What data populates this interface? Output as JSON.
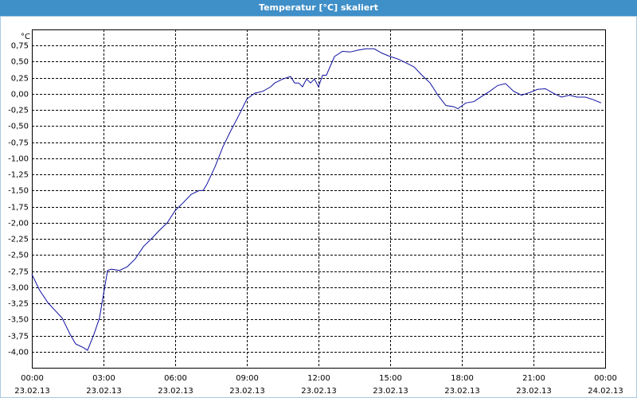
{
  "window_title": "Temperatur [°C] skaliert",
  "chart_data": {
    "type": "line",
    "ylabel": "°C",
    "x": [
      0,
      0.33,
      0.67,
      1.27,
      1.6,
      1.83,
      2.17,
      2.33,
      2.6,
      2.83,
      3.0,
      3.17,
      3.33,
      3.67,
      4.0,
      4.33,
      4.67,
      5.0,
      5.33,
      5.67,
      6.0,
      6.33,
      6.67,
      7.0,
      7.17,
      7.33,
      7.67,
      8.0,
      8.33,
      8.67,
      9.0,
      9.33,
      9.67,
      10.0,
      10.17,
      10.5,
      10.83,
      11.0,
      11.17,
      11.33,
      11.5,
      11.67,
      11.83,
      12.0,
      12.17,
      12.33,
      12.67,
      13.0,
      13.33,
      13.67,
      14.0,
      14.33,
      14.67,
      15.0,
      15.33,
      15.67,
      16.0,
      16.33,
      16.67,
      17.0,
      17.33,
      17.67,
      17.83,
      18.17,
      18.5,
      18.83,
      19.17,
      19.5,
      19.83,
      20.17,
      20.5,
      20.83,
      21.17,
      21.5,
      21.83,
      22.17,
      22.5,
      22.83,
      23.17,
      23.5,
      23.83
    ],
    "series": [
      {
        "color": "#1010a0",
        "values": [
          -2.8,
          -3.05,
          -3.24,
          -3.48,
          -3.73,
          -3.88,
          -3.94,
          -3.98,
          -3.73,
          -3.48,
          -3.11,
          -2.74,
          -2.72,
          -2.74,
          -2.68,
          -2.56,
          -2.37,
          -2.25,
          -2.12,
          -2.0,
          -1.81,
          -1.69,
          -1.56,
          -1.5,
          -1.5,
          -1.4,
          -1.13,
          -0.82,
          -0.57,
          -0.33,
          -0.08,
          0.01,
          0.04,
          0.11,
          0.17,
          0.23,
          0.27,
          0.17,
          0.17,
          0.11,
          0.23,
          0.17,
          0.23,
          0.11,
          0.29,
          0.29,
          0.58,
          0.66,
          0.65,
          0.68,
          0.7,
          0.7,
          0.63,
          0.58,
          0.54,
          0.48,
          0.42,
          0.29,
          0.17,
          -0.02,
          -0.18,
          -0.2,
          -0.23,
          -0.14,
          -0.12,
          -0.04,
          0.04,
          0.13,
          0.16,
          0.04,
          -0.02,
          0.02,
          0.07,
          0.08,
          0.01,
          -0.05,
          -0.02,
          -0.05,
          -0.05,
          -0.09,
          -0.14
        ]
      }
    ],
    "xlim": [
      0,
      24
    ],
    "xticks": [
      {
        "value": 0,
        "label": "00:00",
        "date": "23.02.13"
      },
      {
        "value": 3,
        "label": "03:00",
        "date": "23.02.13"
      },
      {
        "value": 6,
        "label": "06:00",
        "date": "23.02.13"
      },
      {
        "value": 9,
        "label": "09:00",
        "date": "23.02.13"
      },
      {
        "value": 12,
        "label": "12:00",
        "date": "23.02.13"
      },
      {
        "value": 15,
        "label": "15:00",
        "date": "23.02.13"
      },
      {
        "value": 18,
        "label": "18:00",
        "date": "23.02.13"
      },
      {
        "value": 21,
        "label": "21:00",
        "date": "23.02.13"
      },
      {
        "value": 24,
        "label": "00:00",
        "date": "24.02.13"
      }
    ],
    "ylim": [
      -4.25,
      1.0
    ],
    "yticks": [
      {
        "value": 0.75,
        "label": "0,75"
      },
      {
        "value": 0.5,
        "label": "0,50"
      },
      {
        "value": 0.25,
        "label": "0,25"
      },
      {
        "value": 0,
        "label": "0,00"
      },
      {
        "value": -0.25,
        "label": "-0,25"
      },
      {
        "value": -0.5,
        "label": "-0,50"
      },
      {
        "value": -0.75,
        "label": "-0,75"
      },
      {
        "value": -1,
        "label": "-1,00"
      },
      {
        "value": -1.25,
        "label": "-1,25"
      },
      {
        "value": -1.5,
        "label": "-1,50"
      },
      {
        "value": -1.75,
        "label": "-1,75"
      },
      {
        "value": -2,
        "label": "-2,00"
      },
      {
        "value": -2.25,
        "label": "-2,25"
      },
      {
        "value": -2.5,
        "label": "-2,50"
      },
      {
        "value": -2.75,
        "label": "-2,75"
      },
      {
        "value": -3,
        "label": "-3,00"
      },
      {
        "value": -3.25,
        "label": "-3,25"
      },
      {
        "value": -3.5,
        "label": "-3,50"
      },
      {
        "value": -3.75,
        "label": "-3,75"
      },
      {
        "value": -4,
        "label": "-4,00"
      }
    ],
    "grid": true
  }
}
